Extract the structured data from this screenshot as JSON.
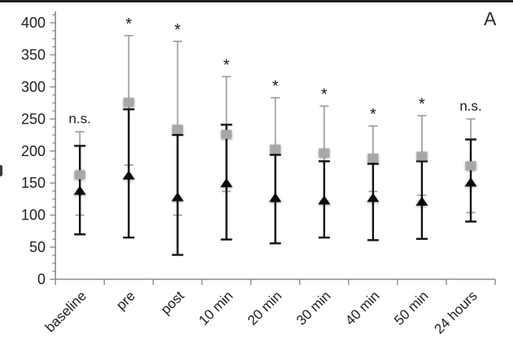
{
  "figure": {
    "panel_label": "A"
  },
  "colors": {
    "background": "#ffffff",
    "top_border": "#232323",
    "axis": "#8c8c8c",
    "tick_text": "#1f1f1f",
    "annotation_text": "#1a1a1a",
    "gray_series_marker": "#a7a7a7",
    "gray_series_line": "#9e9e9e",
    "black_series_marker": "#0a0a0a",
    "black_series_line": "#121212"
  },
  "chart_data": {
    "type": "scatter",
    "title": "",
    "xlabel": "",
    "ylabel": "",
    "categories": [
      "baseline",
      "pre",
      "post",
      "10 min",
      "20 min",
      "30 min",
      "40 min",
      "50 min",
      "24 hours"
    ],
    "annotations": [
      "n.s.",
      "*",
      "*",
      "*",
      "*",
      "*",
      "*",
      "*",
      "n.s."
    ],
    "y_axis": {
      "min": 0,
      "max": 400,
      "major_step": 50,
      "minor_step": 12.5,
      "tick_labels": [
        "0",
        "50",
        "100",
        "150",
        "200",
        "250",
        "300",
        "350",
        "400"
      ]
    },
    "grid": "off",
    "legend": "none",
    "series": [
      {
        "name": "gray-squares",
        "marker": "square",
        "values": [
          163,
          276,
          234,
          226,
          203,
          197,
          189,
          192,
          177
        ],
        "err_high": [
          230,
          380,
          371,
          316,
          283,
          270,
          239,
          255,
          250
        ],
        "err_low": [
          100,
          178,
          100,
          137,
          121,
          122,
          137,
          131,
          104
        ]
      },
      {
        "name": "black-triangles",
        "marker": "triangle",
        "values": [
          138,
          162,
          128,
          150,
          127,
          123,
          127,
          121,
          151
        ],
        "err_high": [
          208,
          265,
          225,
          241,
          194,
          184,
          180,
          184,
          218
        ],
        "err_low": [
          70,
          65,
          38,
          62,
          56,
          65,
          61,
          63,
          90
        ]
      }
    ]
  }
}
